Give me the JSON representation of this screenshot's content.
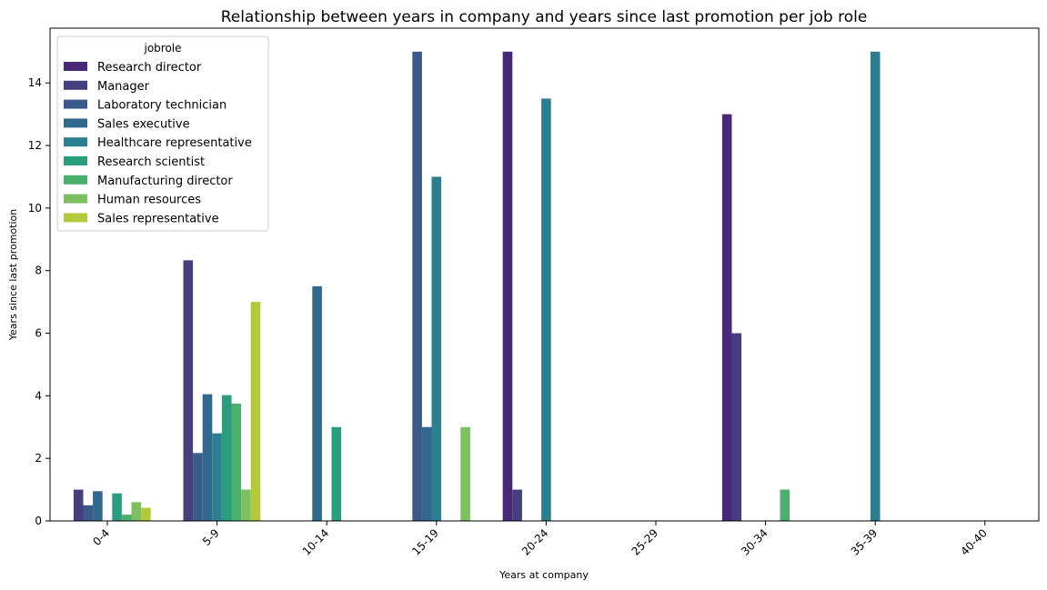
{
  "chart_data": {
    "type": "bar",
    "title": "Relationship between years in company and years since last promotion per job role",
    "xlabel": "Years at company",
    "ylabel": "Years since last promotion",
    "categories": [
      "0-4",
      "5-9",
      "10-14",
      "15-19",
      "20-24",
      "25-29",
      "30-34",
      "35-39",
      "40-40"
    ],
    "ylim": [
      0,
      15.75
    ],
    "yticks": [
      0,
      2,
      4,
      6,
      8,
      10,
      12,
      14
    ],
    "grid": false,
    "legend": {
      "title": "jobrole",
      "placement": "top-left"
    },
    "series": [
      {
        "name": "Research director",
        "color": "#482878",
        "values": [
          null,
          null,
          null,
          null,
          15,
          null,
          13,
          null,
          null
        ]
      },
      {
        "name": "Manager",
        "color": "#453f7f",
        "values": [
          1,
          8.33,
          null,
          null,
          1,
          null,
          6,
          null,
          null
        ]
      },
      {
        "name": "Laboratory technician",
        "color": "#3b5a8a",
        "values": [
          0.5,
          2.17,
          null,
          15,
          null,
          null,
          null,
          null,
          null
        ]
      },
      {
        "name": "Sales executive",
        "color": "#31688e",
        "values": [
          0.95,
          4.05,
          7.5,
          3,
          null,
          null,
          null,
          null,
          null
        ]
      },
      {
        "name": "Healthcare representative",
        "color": "#2b7f8e",
        "values": [
          null,
          2.8,
          null,
          11,
          13.5,
          null,
          null,
          15,
          null
        ]
      },
      {
        "name": "Research scientist",
        "color": "#2a9d7e",
        "values": [
          0.88,
          4.02,
          3,
          null,
          null,
          null,
          null,
          null,
          null
        ]
      },
      {
        "name": "Manufacturing director",
        "color": "#4caf6e",
        "values": [
          0.2,
          3.75,
          null,
          null,
          null,
          null,
          1,
          null,
          null
        ]
      },
      {
        "name": "Human resources",
        "color": "#7cc062",
        "values": [
          0.6,
          1,
          null,
          3,
          null,
          null,
          null,
          null,
          null
        ]
      },
      {
        "name": "Sales representative",
        "color": "#b3c93b",
        "values": [
          0.42,
          7,
          null,
          null,
          null,
          null,
          null,
          null,
          null
        ]
      }
    ]
  }
}
